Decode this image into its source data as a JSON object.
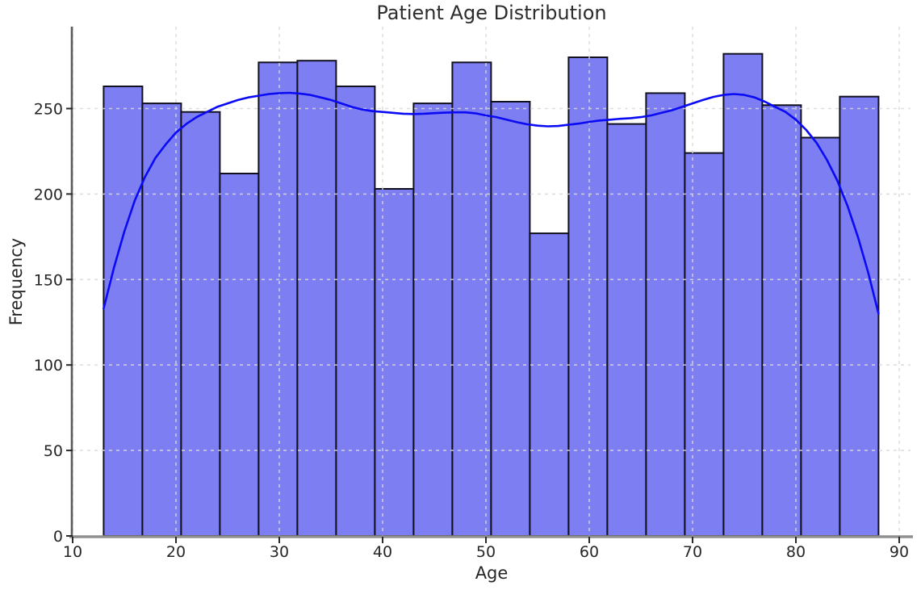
{
  "figure": {
    "title": "Patient Age Distribution",
    "xlabel": "Age",
    "ylabel": "Frequency"
  },
  "chart_data": {
    "type": "bar",
    "subtype": "histogram_with_kde",
    "title": "Patient Age Distribution",
    "xlabel": "Age",
    "ylabel": "Frequency",
    "xlim": [
      10,
      91
    ],
    "ylim": [
      0,
      298
    ],
    "x_ticks": [
      10,
      20,
      30,
      40,
      50,
      60,
      70,
      80,
      90
    ],
    "y_ticks": [
      0,
      50,
      100,
      150,
      200,
      250
    ],
    "grid": true,
    "grid_style": "dashed",
    "bin_edges": [
      13,
      16.75,
      20.5,
      24.25,
      28,
      31.75,
      35.5,
      39.25,
      43,
      46.75,
      50.5,
      54.25,
      58,
      61.75,
      65.5,
      69.25,
      73,
      76.75,
      80.5,
      84.25,
      88
    ],
    "values": [
      263,
      253,
      248,
      212,
      277,
      278,
      263,
      203,
      253,
      277,
      254,
      177,
      280,
      241,
      259,
      224,
      282,
      252,
      233,
      257
    ],
    "colors": {
      "bar_fill": "#7e7ef3",
      "bar_edge": "#101020",
      "kde_line": "#0a0af5",
      "grid_line": "#d9d9d9",
      "spine": "#5a5a5a",
      "bottom_spine": "#909090",
      "tick_mark": "#2a2a2a",
      "text": "#262626"
    },
    "kde_line": {
      "name": "kde-density-curve",
      "points": [
        [
          13,
          133
        ],
        [
          14,
          157
        ],
        [
          15,
          178
        ],
        [
          16,
          196
        ],
        [
          17,
          210
        ],
        [
          18,
          221
        ],
        [
          19,
          229
        ],
        [
          20,
          236
        ],
        [
          21,
          241
        ],
        [
          22,
          245
        ],
        [
          23,
          248
        ],
        [
          24,
          251
        ],
        [
          25,
          253
        ],
        [
          26,
          255
        ],
        [
          27,
          256.5
        ],
        [
          28,
          257.5
        ],
        [
          29,
          258.5
        ],
        [
          30,
          259
        ],
        [
          31,
          259.2
        ],
        [
          32,
          258.8
        ],
        [
          33,
          258
        ],
        [
          34,
          256.5
        ],
        [
          35,
          255
        ],
        [
          36,
          253
        ],
        [
          37,
          251
        ],
        [
          38,
          249.5
        ],
        [
          39,
          248.5
        ],
        [
          40,
          248
        ],
        [
          41,
          247.5
        ],
        [
          42,
          247
        ],
        [
          43,
          246.8
        ],
        [
          44,
          247
        ],
        [
          45,
          247.3
        ],
        [
          46,
          247.6
        ],
        [
          47,
          247.8
        ],
        [
          48,
          247.8
        ],
        [
          49,
          247.2
        ],
        [
          50,
          246
        ],
        [
          51,
          245
        ],
        [
          52,
          243.5
        ],
        [
          53,
          242
        ],
        [
          54,
          240.8
        ],
        [
          55,
          240
        ],
        [
          56,
          239.6
        ],
        [
          57,
          239.8
        ],
        [
          58,
          240.5
        ],
        [
          59,
          241.2
        ],
        [
          60,
          242.2
        ],
        [
          61,
          243
        ],
        [
          62,
          243.5
        ],
        [
          63,
          244
        ],
        [
          64,
          244.4
        ],
        [
          65,
          245
        ],
        [
          66,
          246
        ],
        [
          67,
          247.5
        ],
        [
          68,
          249
        ],
        [
          69,
          251
        ],
        [
          70,
          253
        ],
        [
          71,
          255
        ],
        [
          72,
          256.8
        ],
        [
          73,
          258
        ],
        [
          74,
          258.5
        ],
        [
          75,
          258
        ],
        [
          76,
          256.5
        ],
        [
          77,
          254
        ],
        [
          78,
          251
        ],
        [
          79,
          248
        ],
        [
          80,
          243.5
        ],
        [
          81,
          237.5
        ],
        [
          82,
          230
        ],
        [
          83,
          220
        ],
        [
          84,
          208
        ],
        [
          85,
          193
        ],
        [
          86,
          175
        ],
        [
          87,
          154
        ],
        [
          88,
          130
        ]
      ]
    }
  }
}
